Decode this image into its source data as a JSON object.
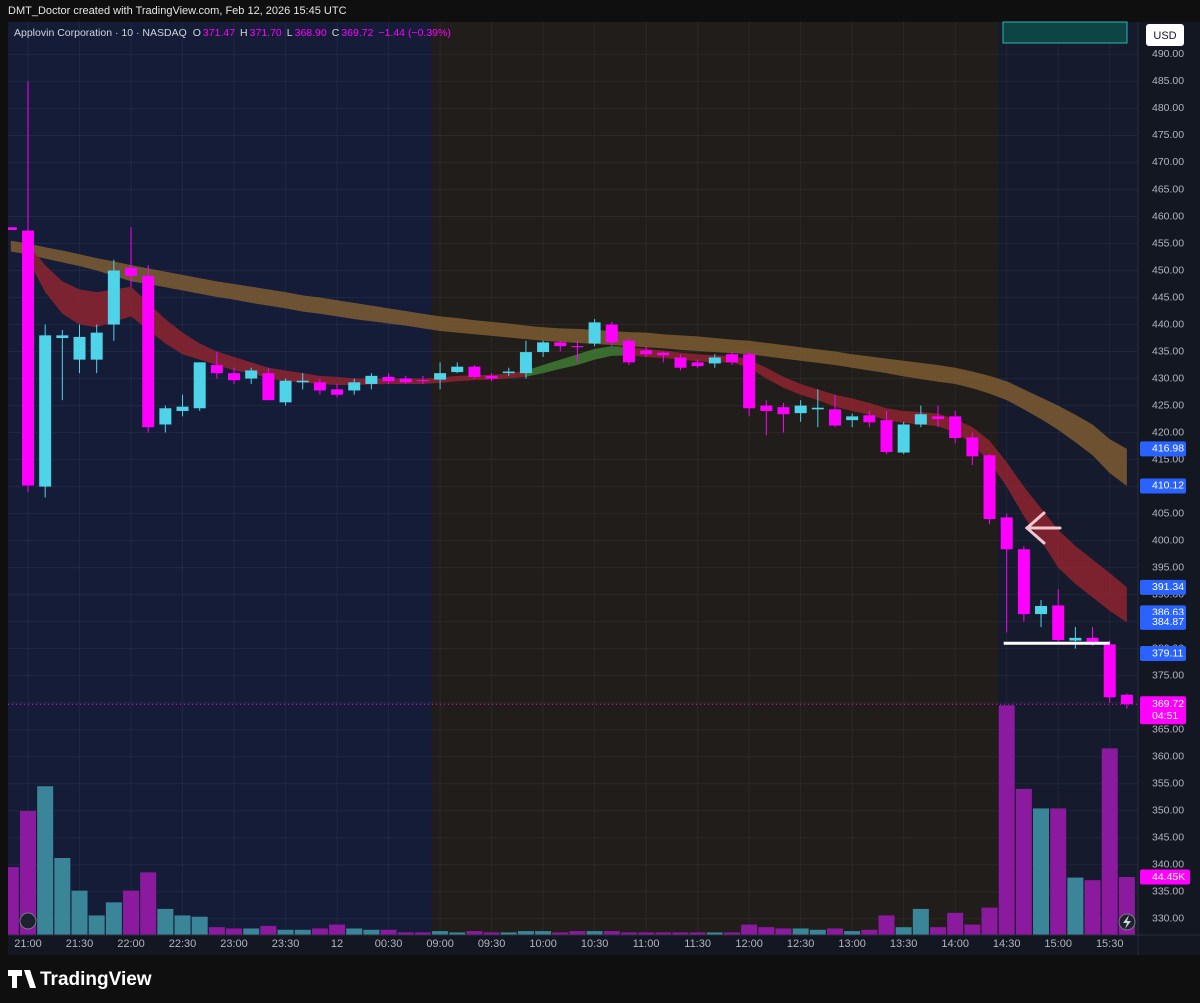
{
  "header": {
    "text": "DMT_Doctor created with TradingView.com, Feb 12, 2026 15:45 UTC"
  },
  "footer": {
    "brand": "TradingView"
  },
  "chart_data": {
    "type": "candlestick",
    "legend": {
      "symbol": "Applovin Corporation · 10 · NASDAQ",
      "fields": [
        {
          "key": "O",
          "label": "371.47"
        },
        {
          "key": "H",
          "label": "371.70"
        },
        {
          "key": "L",
          "label": "368.90"
        },
        {
          "key": "C",
          "label": "369.72"
        }
      ],
      "change": "−1.44 (−0.39%)"
    },
    "currency": "USD",
    "countdown": "04:51",
    "up_color": "#4fd3e8",
    "down_color": "#ff00ff",
    "volume_up_color": "#3a8597",
    "volume_down_color": "#8c1a9e",
    "categories": [
      null,
      "21:00",
      null,
      null,
      "21:30",
      null,
      null,
      "22:00",
      null,
      null,
      "22:30",
      null,
      null,
      "23:00",
      null,
      null,
      "23:30",
      null,
      null,
      "12",
      null,
      null,
      "00:30",
      null,
      null,
      "09:00",
      null,
      null,
      "09:30",
      null,
      null,
      "10:00",
      null,
      null,
      "10:30",
      null,
      null,
      "11:00",
      null,
      null,
      "11:30",
      null,
      null,
      "12:00",
      null,
      null,
      "12:30",
      null,
      null,
      "13:00",
      null,
      null,
      "13:30",
      null,
      null,
      "14:00",
      null,
      null,
      "14:30",
      null,
      null,
      "15:00",
      null,
      null,
      "15:30",
      null
    ],
    "open": [
      458,
      457.4,
      410,
      437.5,
      433.5,
      433.5,
      440,
      450.5,
      449,
      421.5,
      424,
      424.5,
      432.5,
      431,
      430,
      431,
      425.6,
      429.3,
      429.3,
      428,
      427.8,
      429,
      430.3,
      430,
      429.7,
      429.8,
      431.2,
      432.2,
      430.5,
      431,
      431,
      434.9,
      436.7,
      436,
      436.5,
      440,
      437,
      435.2,
      434.8,
      433.9,
      433,
      432.8,
      434.5,
      434.5,
      425,
      424.7,
      423.6,
      424.3,
      424.3,
      422.3,
      423.2,
      422.3,
      416.3,
      421.5,
      423,
      423,
      419.1,
      415.8,
      404.3,
      398.4,
      386.4,
      388,
      381.5,
      382,
      380.8,
      371.47
    ],
    "high": [
      458,
      485,
      440,
      439,
      440,
      440,
      452,
      458,
      451,
      425,
      427,
      433,
      435,
      432,
      432,
      432,
      430,
      431,
      430,
      429,
      430,
      431,
      431,
      430.5,
      430.5,
      433,
      433,
      432.5,
      431,
      432,
      437,
      437,
      437,
      437,
      441,
      440.5,
      437.5,
      436,
      435,
      434.5,
      433.5,
      434.5,
      435,
      435,
      426,
      425.5,
      426,
      428,
      427,
      423.5,
      424,
      424,
      422,
      425,
      425,
      424,
      420,
      416,
      405,
      399,
      389,
      391,
      384,
      384,
      381.5,
      371.7
    ],
    "low": [
      457.5,
      409,
      408,
      426,
      431,
      431,
      437,
      447,
      420,
      420,
      423,
      424,
      430,
      429,
      429,
      426,
      425,
      428,
      427,
      426.5,
      427,
      428,
      429,
      429,
      429,
      428,
      431,
      430,
      429.5,
      430.5,
      430,
      434,
      435,
      433,
      436,
      436,
      432.5,
      434,
      433,
      431.5,
      432,
      432,
      432.5,
      423,
      419.5,
      420,
      422,
      421,
      421,
      421,
      421,
      416,
      416,
      421,
      421,
      418,
      414,
      403,
      383,
      385,
      384,
      381,
      380,
      380.5,
      370,
      368.9
    ],
    "close": [
      457.5,
      410.2,
      438,
      438,
      437.7,
      438.5,
      450,
      449,
      421,
      424.5,
      424.8,
      433,
      431,
      429.7,
      431.5,
      426,
      429.6,
      429.6,
      427.8,
      427,
      429.3,
      430.5,
      429.5,
      429.3,
      429.6,
      431,
      432.2,
      430.3,
      430,
      431.3,
      434.9,
      436.7,
      436,
      435.8,
      440.4,
      436.7,
      433,
      434.5,
      434.3,
      432,
      432.3,
      433.9,
      433,
      424.5,
      424,
      423.4,
      425,
      424.6,
      421.3,
      423,
      421.9,
      416.4,
      421.5,
      423.4,
      422.5,
      419,
      415.6,
      404,
      398.4,
      386.4,
      387.9,
      381.6,
      382,
      381,
      371,
      369.72
    ],
    "volume": {
      "values": [
        52000,
        95000,
        114000,
        59000,
        34000,
        15000,
        25000,
        34000,
        48000,
        20000,
        15000,
        14000,
        6000,
        5000,
        5000,
        7000,
        4000,
        4000,
        5000,
        8000,
        5000,
        4000,
        4000,
        2000,
        2000,
        3000,
        2000,
        3000,
        2000,
        2000,
        3000,
        3000,
        2000,
        3000,
        3000,
        3000,
        2000,
        2000,
        2000,
        2000,
        2000,
        2000,
        2000,
        8000,
        6000,
        5000,
        5000,
        4000,
        5000,
        3000,
        4000,
        15000,
        6000,
        20000,
        6000,
        17000,
        8000,
        21000,
        176000,
        112000,
        97000,
        97000,
        44000,
        42000,
        143000,
        44450
      ],
      "value_labels": [
        null,
        null,
        null,
        null,
        null,
        null,
        null,
        null,
        null,
        null,
        null,
        null,
        null,
        null,
        null,
        null,
        null,
        null,
        null,
        null,
        null,
        null,
        null,
        null,
        null,
        null,
        null,
        null,
        null,
        null,
        null,
        null,
        null,
        null,
        null,
        null,
        null,
        null,
        null,
        null,
        null,
        null,
        null,
        null,
        null,
        null,
        null,
        null,
        null,
        null,
        null,
        null,
        null,
        null,
        null,
        null,
        null,
        null,
        null,
        null,
        null,
        null,
        null,
        null,
        null,
        "44.45K"
      ]
    },
    "bands": [
      {
        "color": "#7d5c33",
        "upper": [
          455.5,
          455,
          454.3,
          453.7,
          453,
          452.3,
          451.7,
          451,
          450.4,
          449.8,
          449.2,
          448.6,
          448,
          447.5,
          447,
          446.5,
          446,
          445.4,
          445,
          444.5,
          444,
          443.5,
          443,
          442.5,
          442,
          441.5,
          441.2,
          440.8,
          440.5,
          440.2,
          439.8,
          439.5,
          439.3,
          439.2,
          439,
          438.8,
          438.6,
          438.5,
          438.2,
          438,
          437.8,
          437.5,
          437.2,
          437,
          436.6,
          436.2,
          435.8,
          435.4,
          435,
          434.5,
          434.1,
          433.7,
          433.3,
          432.9,
          432.5,
          432,
          431.3,
          430.5,
          429.5,
          428,
          426.5,
          425,
          423.3,
          421.5,
          418.8,
          416.98
        ],
        "lower": [
          453.5,
          453,
          452.2,
          451.5,
          450.8,
          450,
          449,
          448,
          447.5,
          446.9,
          446.3,
          445.7,
          445.1,
          444.6,
          444,
          443.5,
          443,
          442.4,
          442,
          441.5,
          441,
          440.6,
          440.2,
          439.8,
          439.3,
          438.8,
          438.5,
          438.2,
          437.9,
          437.6,
          437.3,
          437,
          436.8,
          436.6,
          436.4,
          436.2,
          436,
          435.8,
          435.6,
          435.3,
          435.1,
          434.9,
          434.7,
          434.5,
          434.1,
          433.7,
          433.3,
          432.9,
          432.5,
          432,
          431.5,
          431,
          430.4,
          429.9,
          429.4,
          429,
          428.2,
          427.2,
          426,
          424.3,
          422.5,
          420.5,
          418.2,
          415.8,
          412.5,
          410.12
        ]
      },
      {
        "color": "#8e2430",
        "upper": [
          null,
          455,
          451,
          448,
          446.5,
          446,
          446.5,
          447,
          444,
          441,
          438.5,
          436.5,
          435,
          434,
          433,
          432,
          431.5,
          431,
          430.5,
          430.3,
          430,
          430,
          430,
          430,
          430,
          430.2,
          430.5,
          430.6,
          430.7,
          430.9,
          431.5,
          null,
          null,
          null,
          null,
          null,
          435.8,
          435.5,
          435.2,
          434.8,
          434.5,
          434.3,
          434.2,
          433.5,
          432,
          430.3,
          429,
          428,
          427,
          426.3,
          425.5,
          424.5,
          424,
          423.8,
          423.5,
          422.5,
          421,
          418.5,
          414.5,
          410,
          406,
          402,
          399,
          396.5,
          394,
          391.34
        ],
        "lower": [
          null,
          452,
          446,
          442,
          440,
          439.5,
          440.5,
          441.5,
          439,
          436.5,
          434.5,
          433.5,
          432.5,
          431.5,
          431,
          430,
          429.5,
          429.3,
          429,
          428.8,
          428.8,
          428.9,
          429,
          429,
          429,
          429.2,
          429.5,
          429.7,
          429.8,
          430,
          430.3,
          null,
          null,
          null,
          null,
          null,
          434.3,
          434,
          433.8,
          433.5,
          433.2,
          433,
          433,
          432,
          430,
          428.3,
          427,
          426,
          424.8,
          424,
          423.3,
          422.3,
          421.8,
          421.5,
          421.2,
          420,
          418,
          414.5,
          410,
          404.5,
          400,
          395,
          392,
          389.5,
          387,
          384.87
        ]
      },
      {
        "color": "#3f7a34",
        "upper": [
          null,
          null,
          null,
          null,
          null,
          null,
          null,
          null,
          null,
          null,
          null,
          null,
          null,
          null,
          null,
          null,
          null,
          null,
          null,
          null,
          null,
          null,
          null,
          null,
          null,
          null,
          null,
          null,
          null,
          null,
          431.5,
          432.5,
          433.5,
          434.5,
          435.5,
          436,
          435.8,
          null,
          null,
          null,
          null,
          null,
          null,
          null,
          null,
          null,
          null,
          null,
          null,
          null,
          null,
          null,
          null,
          null,
          null,
          null,
          null,
          null,
          null,
          null,
          null,
          null,
          null,
          null,
          null,
          null
        ],
        "lower": [
          null,
          null,
          null,
          null,
          null,
          null,
          null,
          null,
          null,
          null,
          null,
          null,
          null,
          null,
          null,
          null,
          null,
          null,
          null,
          null,
          null,
          null,
          null,
          null,
          null,
          null,
          null,
          null,
          null,
          null,
          430.3,
          431,
          431.8,
          432.5,
          433.5,
          434.2,
          434.3,
          null,
          null,
          null,
          null,
          null,
          null,
          null,
          null,
          null,
          null,
          null,
          null,
          null,
          null,
          null,
          null,
          null,
          null,
          null,
          null,
          null,
          null,
          null,
          null,
          null,
          null,
          null,
          null,
          null
        ]
      }
    ],
    "hline": 381,
    "price_labels": [
      {
        "value": 416.98,
        "color": "#2962ff"
      },
      {
        "value": 410.12,
        "color": "#2962ff"
      },
      {
        "value": 391.34,
        "color": "#2962ff"
      },
      {
        "value": 386.63,
        "color": "#2962ff"
      },
      {
        "value": 384.87,
        "color": "#2962ff"
      },
      {
        "value": 379.11,
        "color": "#2962ff"
      }
    ],
    "ylim": [
      327,
      496
    ],
    "yticks": [
      {
        "value": 330,
        "label": "330.00"
      },
      {
        "value": 335,
        "label": "335.00"
      },
      {
        "value": 340,
        "label": "340.00"
      },
      {
        "value": 345,
        "label": "345.00"
      },
      {
        "value": 350,
        "label": "350.00"
      },
      {
        "value": 355,
        "label": "355.00"
      },
      {
        "value": 360,
        "label": "360.00"
      },
      {
        "value": 365,
        "label": "365.00"
      },
      {
        "value": 370,
        "label": "370.00"
      },
      {
        "value": 375,
        "label": "375.00"
      },
      {
        "value": 380,
        "label": "380.00"
      },
      {
        "value": 385,
        "label": "385.00"
      },
      {
        "value": 390,
        "label": "390.00"
      },
      {
        "value": 395,
        "label": "395.00"
      },
      {
        "value": 400,
        "label": "400.00"
      },
      {
        "value": 405,
        "label": "405.00"
      },
      {
        "value": 410,
        "label": "410.00"
      },
      {
        "value": 415,
        "label": "415.00"
      },
      {
        "value": 420,
        "label": "420.00"
      },
      {
        "value": 425,
        "label": "425.00"
      },
      {
        "value": 430,
        "label": "430.00"
      },
      {
        "value": 435,
        "label": "435.00"
      },
      {
        "value": 440,
        "label": "440.00"
      },
      {
        "value": 445,
        "label": "445.00"
      },
      {
        "value": 450,
        "label": "450.00"
      },
      {
        "value": 455,
        "label": "455.00"
      },
      {
        "value": 460,
        "label": "460.00"
      },
      {
        "value": 465,
        "label": "465.00"
      },
      {
        "value": 470,
        "label": "470.00"
      },
      {
        "value": 475,
        "label": "475.00"
      },
      {
        "value": 480,
        "label": "480.00"
      },
      {
        "value": 485,
        "label": "485.00"
      },
      {
        "value": 490,
        "label": "490.00"
      }
    ],
    "grid": true
  }
}
